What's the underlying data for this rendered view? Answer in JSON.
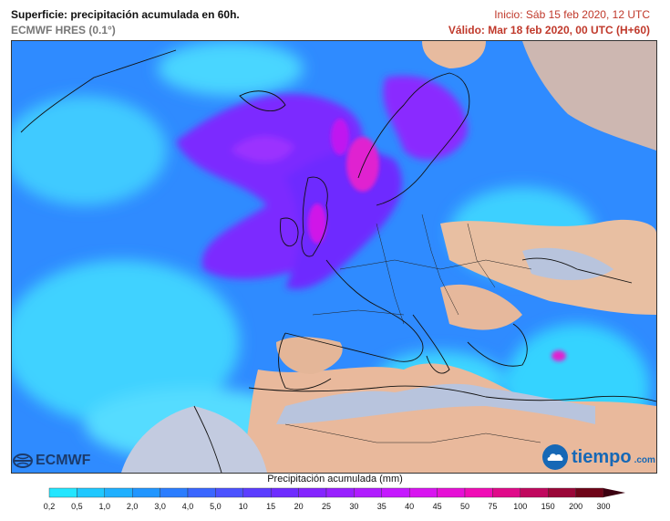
{
  "header": {
    "title": "Superficie: precipitación acumulada en 60h.",
    "model": "ECMWF HRES (0.1°)",
    "init": "Inicio: Sáb 15 feb 2020, 12 UTC",
    "valid": "Válido: Mar 18 feb 2020, 00 UTC (H+60)"
  },
  "logos": {
    "left": "ECMWF",
    "left_icon": "ecmwf-logo-icon",
    "right": "tiempo",
    "right_domain": ".com",
    "right_icon": "tiempo-cloud-icon"
  },
  "legend": {
    "title": "Precipitación acumulada (mm)",
    "unit": "mm",
    "ticks": [
      "0,2",
      "0,5",
      "1,0",
      "2,0",
      "3,0",
      "4,0",
      "5,0",
      "10",
      "15",
      "20",
      "25",
      "30",
      "35",
      "40",
      "45",
      "50",
      "75",
      "100",
      "150",
      "200",
      "300"
    ],
    "colors": [
      "#23e6ff",
      "#1fc8ff",
      "#1fb0ff",
      "#2196ff",
      "#2b7dff",
      "#3a66ff",
      "#4b52ff",
      "#5b3dff",
      "#6e2cff",
      "#8424ff",
      "#9820ff",
      "#b01cff",
      "#c518ff",
      "#d814f0",
      "#e610d6",
      "#f00cb6",
      "#e00a8a",
      "#c0085e",
      "#9a0638",
      "#6e0418"
    ]
  },
  "map": {
    "region": "Europa y Atlántico Norte",
    "colors": {
      "ocean_rain": "#2f8bff",
      "light_rain": "#38d8ff",
      "heavy_rain": "#7a2cff",
      "very_heavy": "#e020d0",
      "dry_land": "#e8b89a",
      "sea": "#b9c3dc"
    }
  }
}
